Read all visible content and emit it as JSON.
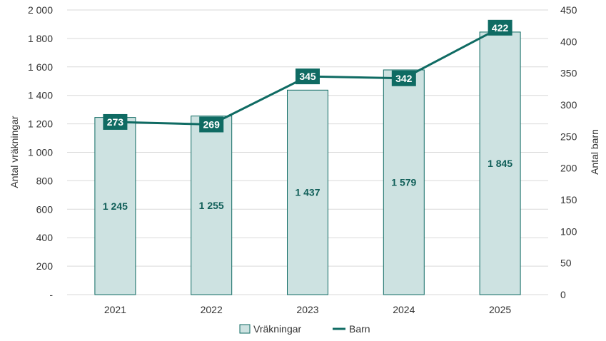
{
  "chart_data": {
    "type": "bar",
    "categories": [
      "2021",
      "2022",
      "2023",
      "2024",
      "2025"
    ],
    "series": [
      {
        "name": "Vräkningar",
        "type": "bar",
        "axis": "left",
        "values": [
          1245,
          1255,
          1437,
          1579,
          1845
        ],
        "labels": [
          "1 245",
          "1 255",
          "1 437",
          "1 579",
          "1 845"
        ]
      },
      {
        "name": "Barn",
        "type": "line",
        "axis": "right",
        "values": [
          273,
          269,
          345,
          342,
          422
        ],
        "labels": [
          "273",
          "269",
          "345",
          "342",
          "422"
        ]
      }
    ],
    "ylabel": "Antal vräkningar",
    "y2label": "Antal barn",
    "ylim": [
      0,
      2000
    ],
    "y2lim": [
      0,
      450
    ],
    "yticks": [
      0,
      200,
      400,
      600,
      800,
      1000,
      1200,
      1400,
      1600,
      1800,
      2000
    ],
    "ytick_labels": [
      "-",
      "200",
      "400",
      "600",
      "800",
      "1 000",
      "1 200",
      "1 400",
      "1 600",
      "1 800",
      "2 000"
    ],
    "y2ticks": [
      0,
      50,
      100,
      150,
      200,
      250,
      300,
      350,
      400,
      450
    ],
    "y2tick_labels": [
      "0",
      "50",
      "100",
      "150",
      "200",
      "250",
      "300",
      "350",
      "400",
      "450"
    ],
    "grid": true,
    "legend_position": "bottom",
    "colors": {
      "bar_fill": "#cde2e1",
      "bar_stroke": "#0f6b63",
      "line": "#0f6b63",
      "line_label_bg": "#0f6b63",
      "bar_label": "#0f5e58",
      "grid": "#d9d9d9"
    }
  }
}
